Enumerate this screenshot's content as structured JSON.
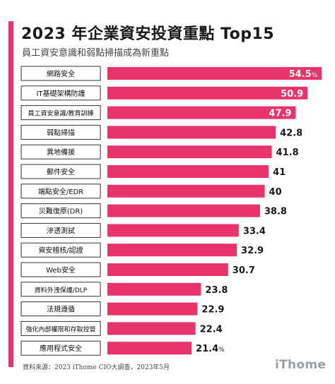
{
  "header": {
    "title": "2023 年企業資安投資重點 Top15",
    "subtitle": "員工資安意識和弱點掃描成為新重點"
  },
  "footer": {
    "source": "資料來源：2023 iThome CIO大調查，2023年5月",
    "logo": "iThome"
  },
  "colors": {
    "accent": "#e8336b",
    "bar": "#e8336b",
    "label_box_border": "#333333",
    "value_inside": "#ffffff",
    "value_outside": "#1a1a1a"
  },
  "chart_data": {
    "type": "bar",
    "orientation": "horizontal",
    "unit": "%",
    "categories": [
      "網路安全",
      "IT基礎架構防護",
      "員工資安意識/教育訓練",
      "弱點掃描",
      "異地備援",
      "郵件安全",
      "端點安全/EDR",
      "災難復原(DR)",
      "滲透測試",
      "資安稽核/認證",
      "Web安全",
      "資料外洩保護/DLP",
      "法規遵循",
      "強化內部權限和存取控管",
      "應用程式安全"
    ],
    "values": [
      54.5,
      50.9,
      47.9,
      42.8,
      41.8,
      41,
      40,
      38.8,
      33.4,
      32.9,
      30.7,
      23.8,
      22.9,
      22.4,
      21.4
    ],
    "value_labels": [
      "54.5",
      "50.9",
      "47.9",
      "42.8",
      "41.8",
      "41",
      "40",
      "38.8",
      "33.4",
      "32.9",
      "30.7",
      "23.8",
      "22.9",
      "22.4",
      "21.4"
    ],
    "unit_shown_on": [
      0,
      14
    ],
    "xlim": [
      0,
      55
    ],
    "grid": false,
    "legend": "none"
  }
}
